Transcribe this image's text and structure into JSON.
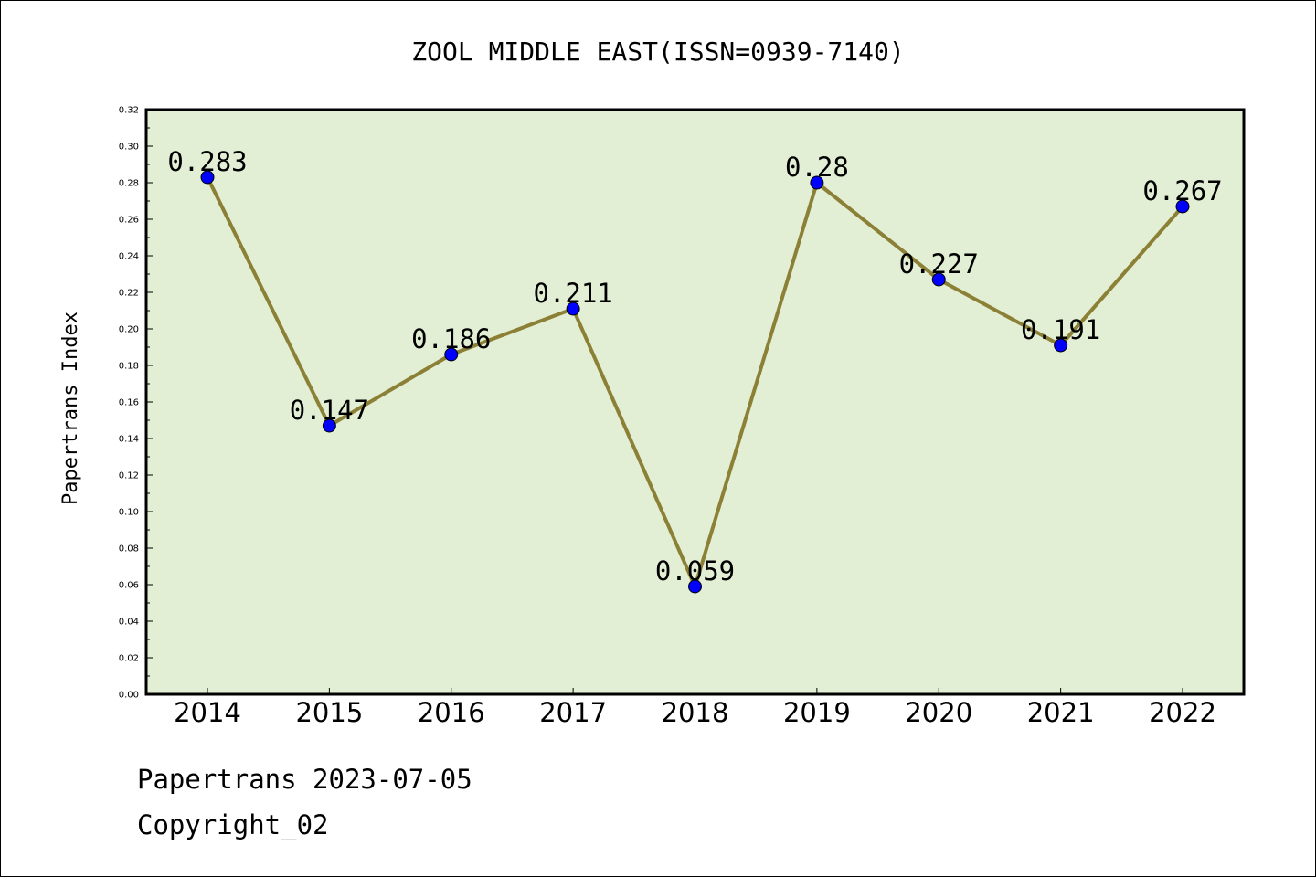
{
  "chart_data": {
    "type": "line",
    "title": "ZOOL MIDDLE EAST(ISSN=0939-7140)",
    "ylabel": "Papertrans Index",
    "xlabel": "",
    "categories": [
      "2014",
      "2015",
      "2016",
      "2017",
      "2018",
      "2019",
      "2020",
      "2021",
      "2022"
    ],
    "values": [
      0.283,
      0.147,
      0.186,
      0.211,
      0.059,
      0.28,
      0.227,
      0.191,
      0.267
    ],
    "data_labels": [
      "0.283",
      "0.147",
      "0.186",
      "0.211",
      "0.059",
      "0.28",
      "0.227",
      "0.191",
      "0.267"
    ],
    "ylim": [
      0,
      0.32
    ],
    "yticks": [
      "0.00",
      "0.02",
      "0.04",
      "0.06",
      "0.08",
      "0.10",
      "0.12",
      "0.14",
      "0.16",
      "0.18",
      "0.20",
      "0.22",
      "0.24",
      "0.26",
      "0.28",
      "0.30",
      "0.32"
    ],
    "grid": false,
    "colors": {
      "plot_background": "#e2efd5",
      "line": "#8b8035",
      "marker": "#0000ff"
    }
  },
  "footer": {
    "line1": "Papertrans 2023-07-05",
    "line2": "Copyright_02"
  }
}
